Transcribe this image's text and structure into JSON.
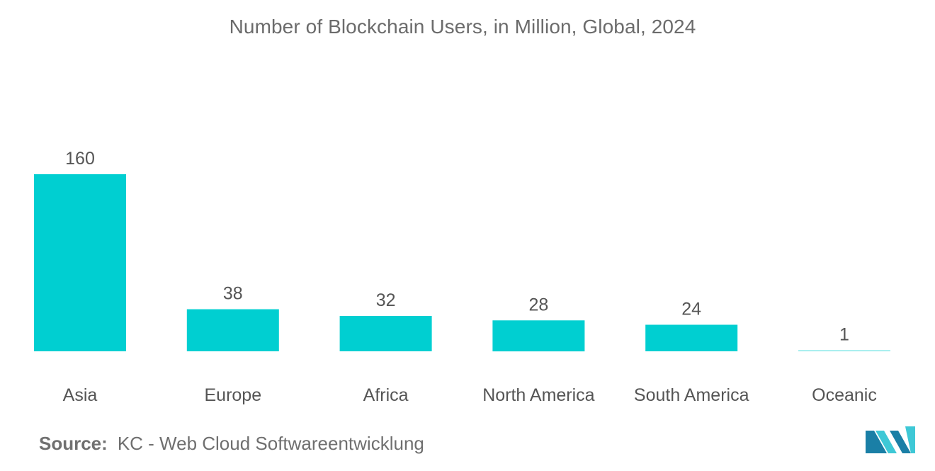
{
  "chart_data": {
    "type": "bar",
    "title": "Number of Blockchain Users, in Million, Global, 2024",
    "categories": [
      "Asia",
      "Europe",
      "Africa",
      "North America",
      "South America",
      "Oceanic"
    ],
    "values": [
      160,
      38,
      32,
      28,
      24,
      1
    ],
    "value_labels": [
      "160",
      "38",
      "32",
      "28",
      "24",
      "1"
    ],
    "xlabel": "",
    "ylabel": "",
    "ylim": [
      0,
      160
    ],
    "grid": false,
    "legend": "none",
    "bar_color": "#00cfd1"
  },
  "source": {
    "label": "Source:",
    "text": "KC - Web Cloud Softwareentwicklung"
  },
  "colors": {
    "title": "#6b6b6b",
    "label": "#555555",
    "logo_dark": "#1a7fa6",
    "logo_light": "#3ec8d6"
  }
}
